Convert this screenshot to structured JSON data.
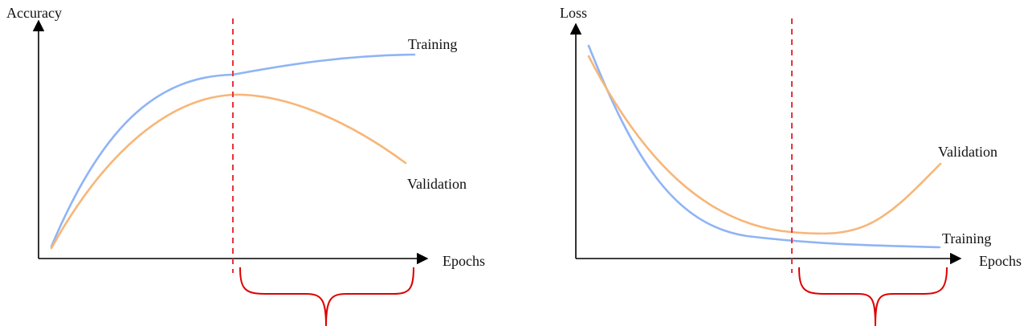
{
  "colors": {
    "training": "#8fb4f5",
    "validation": "#f7b678",
    "cutoff": "#e8333a",
    "brace": "#dd0000",
    "axis": "#000000"
  },
  "panels": [
    {
      "id": "accuracy",
      "y_axis_label": "Accuracy",
      "x_axis_label": "Epochs",
      "training_label": "Training",
      "validation_label": "Validation",
      "trend": {
        "training": "rises then plateaus",
        "validation": "rises, peaks at early-stopping point, then declines"
      }
    },
    {
      "id": "loss",
      "y_axis_label": "Loss",
      "x_axis_label": "Epochs",
      "training_label": "Training",
      "validation_label": "Validation",
      "trend": {
        "training": "decreases then plateaus",
        "validation": "decreases, bottoms near early-stopping point, then rises"
      }
    }
  ]
}
